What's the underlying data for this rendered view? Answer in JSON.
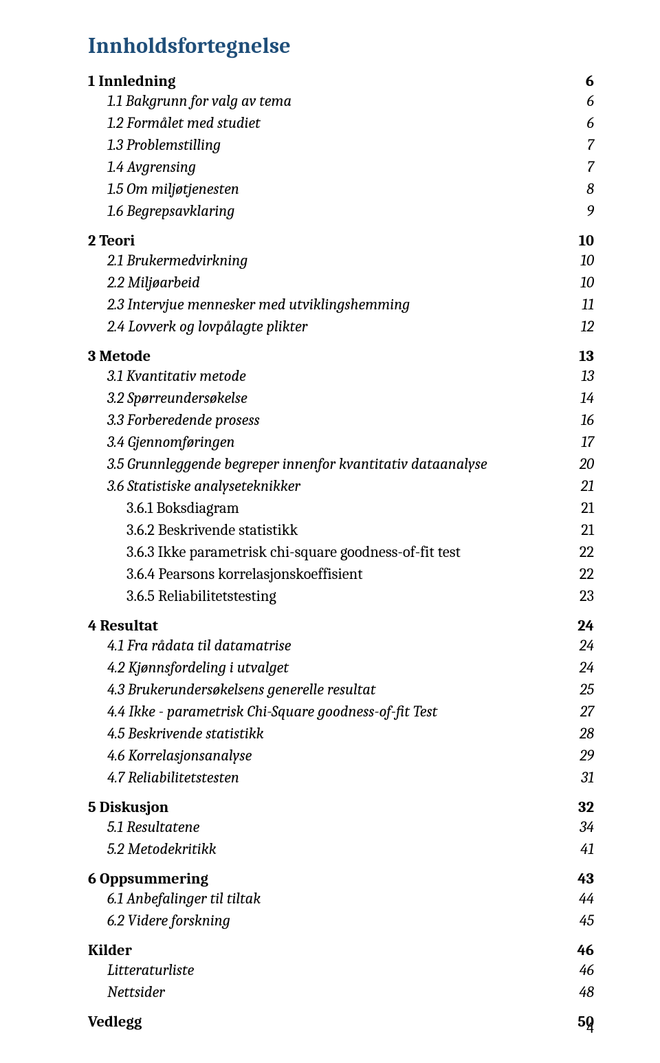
{
  "document": {
    "title_color": "#1f4e79",
    "text_color": "#000000",
    "background_color": "#ffffff",
    "font_family": "Cambria, Georgia, serif",
    "title": "Innholdsfortegnelse",
    "title_fontsize": 32,
    "body_fontsize": 22.5,
    "page_number": "4",
    "toc_entries": [
      {
        "level": 1,
        "label": "1 Innledning",
        "page": "6"
      },
      {
        "level": 2,
        "label": "1.1 Bakgrunn for valg av tema",
        "page": "6"
      },
      {
        "level": 2,
        "label": "1.2 Formålet med studiet",
        "page": "6"
      },
      {
        "level": 2,
        "label": "1.3 Problemstilling",
        "page": "7"
      },
      {
        "level": 2,
        "label": "1.4 Avgrensing",
        "page": "7"
      },
      {
        "level": 2,
        "label": "1.5 Om miljøtjenesten",
        "page": "8"
      },
      {
        "level": 2,
        "label": "1.6 Begrepsavklaring",
        "page": "9"
      },
      {
        "level": 1,
        "label": "2 Teori",
        "page": "10"
      },
      {
        "level": 2,
        "label": "2.1 Brukermedvirkning",
        "page": "10"
      },
      {
        "level": 2,
        "label": "2.2 Miljøarbeid",
        "page": "10"
      },
      {
        "level": 2,
        "label": "2.3 Intervjue mennesker med utviklingshemming",
        "page": "11"
      },
      {
        "level": 2,
        "label": "2.4 Lovverk og lovpålagte plikter",
        "page": "12"
      },
      {
        "level": 1,
        "label": "3 Metode",
        "page": "13"
      },
      {
        "level": 2,
        "label": "3.1 Kvantitativ metode",
        "page": "13"
      },
      {
        "level": 2,
        "label": "3.2 Spørreundersøkelse",
        "page": "14"
      },
      {
        "level": 2,
        "label": "3.3 Forberedende prosess",
        "page": "16"
      },
      {
        "level": 2,
        "label": "3.4 Gjennomføringen",
        "page": "17"
      },
      {
        "level": 2,
        "label": "3.5 Grunnleggende begreper innenfor kvantitativ dataanalyse",
        "page": "20"
      },
      {
        "level": 2,
        "label": "3.6 Statistiske analyseteknikker",
        "page": "21"
      },
      {
        "level": 3,
        "label": "3.6.1 Boksdiagram",
        "page": "21"
      },
      {
        "level": 3,
        "label": "3.6.2 Beskrivende statistikk",
        "page": "21"
      },
      {
        "level": 3,
        "label": "3.6.3 Ikke parametrisk chi-square goodness-of-fit test",
        "page": "22"
      },
      {
        "level": 3,
        "label": "3.6.4 Pearsons korrelasjonskoeffisient",
        "page": "22"
      },
      {
        "level": 3,
        "label": "3.6.5 Reliabilitetstesting",
        "page": "23"
      },
      {
        "level": 1,
        "label": "4 Resultat",
        "page": "24"
      },
      {
        "level": 2,
        "label": "4.1 Fra rådata til datamatrise",
        "page": "24"
      },
      {
        "level": 2,
        "label": "4.2 Kjønnsfordeling i utvalget",
        "page": "24"
      },
      {
        "level": 2,
        "label": "4.3 Brukerundersøkelsens generelle resultat",
        "page": "25"
      },
      {
        "level": 2,
        "label": "4.4 Ikke - parametrisk Chi-Square goodness-of-fit Test",
        "page": "27"
      },
      {
        "level": 2,
        "label": "4.5 Beskrivende statistikk",
        "page": "28"
      },
      {
        "level": 2,
        "label": "4.6 Korrelasjonsanalyse",
        "page": "29"
      },
      {
        "level": 2,
        "label": "4.7 Reliabilitetstesten",
        "page": "31"
      },
      {
        "level": 1,
        "label": "5 Diskusjon",
        "page": "32"
      },
      {
        "level": 2,
        "label": "5.1 Resultatene",
        "page": "34"
      },
      {
        "level": 2,
        "label": "5.2 Metodekritikk",
        "page": "41"
      },
      {
        "level": 1,
        "label": "6 Oppsummering",
        "page": "43"
      },
      {
        "level": 2,
        "label": "6.1 Anbefalinger til tiltak",
        "page": "44"
      },
      {
        "level": 2,
        "label": "6.2 Videre forskning",
        "page": "45"
      },
      {
        "level": 1,
        "label": "Kilder",
        "page": "46"
      },
      {
        "level": 2,
        "label": "Litteraturliste",
        "page": "46"
      },
      {
        "level": 2,
        "label": "Nettsider",
        "page": "48"
      },
      {
        "level": 1,
        "label": "Vedlegg",
        "page": "50"
      }
    ]
  }
}
